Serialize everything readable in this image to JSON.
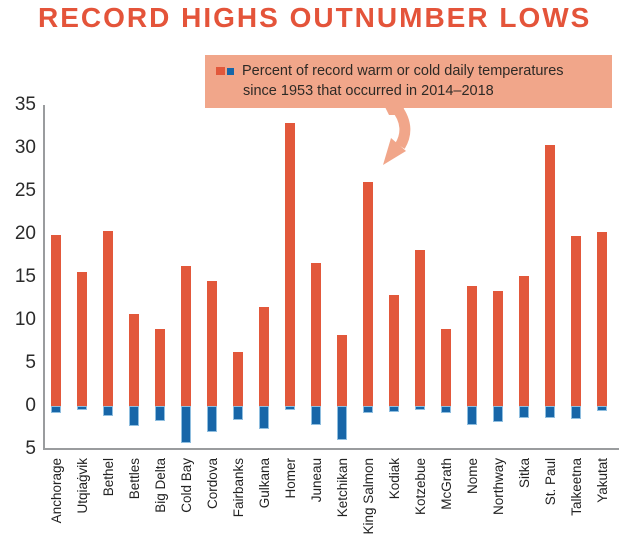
{
  "title": "RECORD HIGHS OUTNUMBER LOWS",
  "legend": {
    "lines": [
      "Percent of record warm or cold daily temperatures",
      "since 1953 that occurred in 2014–2018"
    ]
  },
  "colors": {
    "title": "#E4543A",
    "warm_bar": "#E2583B",
    "cold_bar": "#1766A8",
    "cold_bar_border": "#8FBEDF",
    "legend_bg": "#F1A68A",
    "axis_line": "#9A9C9E",
    "text": "#2B2B2B"
  },
  "chart_data": {
    "type": "bar",
    "title": "RECORD HIGHS OUTNUMBER LOWS",
    "legend_label": "Percent of record warm or cold daily temperatures since 1953 that occurred in 2014–2018",
    "legend_position": "top callout with arrow pointing into plot",
    "grid": false,
    "ylim": [
      -5,
      35
    ],
    "y_ticks": [
      35,
      30,
      25,
      20,
      15,
      10,
      5,
      0,
      -5
    ],
    "y_tick_labels": [
      "35",
      "30",
      "25",
      "20",
      "15",
      "10",
      "5",
      "0",
      "5"
    ],
    "categories": [
      "Anchorage",
      "Utqiaġvik",
      "Bethel",
      "Bettles",
      "Big Delta",
      "Cold Bay",
      "Cordova",
      "Fairbanks",
      "Gulkana",
      "Homer",
      "Juneau",
      "Ketchikan",
      "King Salmon",
      "Kodiak",
      "Kotzebue",
      "McGrath",
      "Nome",
      "Northway",
      "Sitka",
      "St. Paul",
      "Talkeetna",
      "Yakutat"
    ],
    "series": [
      {
        "name": "record warm percent",
        "color": "#E2583B",
        "values": [
          19.9,
          15.6,
          20.4,
          10.7,
          9.0,
          16.3,
          14.5,
          6.3,
          11.5,
          32.9,
          16.6,
          8.2,
          26.0,
          12.9,
          18.1,
          9.0,
          14.0,
          13.4,
          15.1,
          30.3,
          19.8,
          20.2
        ]
      },
      {
        "name": "record cold percent",
        "color": "#1766A8",
        "values": [
          -0.8,
          -0.5,
          -1.2,
          -2.3,
          -1.7,
          -4.3,
          -3.0,
          -1.6,
          -2.7,
          -0.5,
          -2.2,
          -3.9,
          -0.8,
          -0.7,
          -0.5,
          -0.8,
          -2.2,
          -1.9,
          -1.4,
          -1.4,
          -1.5,
          -0.6
        ]
      }
    ]
  }
}
